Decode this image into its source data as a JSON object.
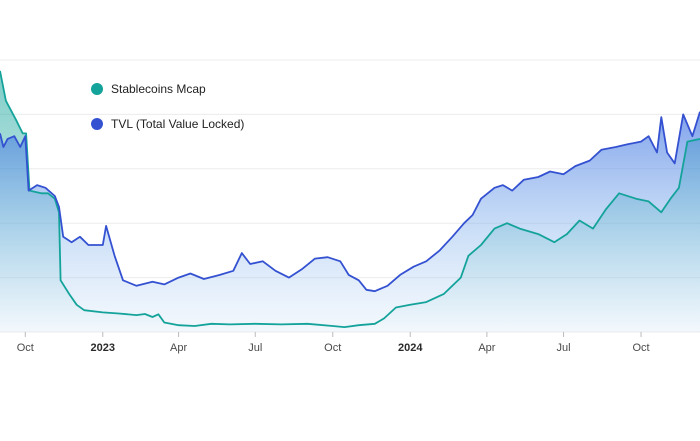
{
  "chart_data": {
    "type": "area",
    "x_ticks": [
      {
        "label": "Oct",
        "date": "2022-10-01",
        "bold": false
      },
      {
        "label": "2023",
        "date": "2023-01-01",
        "bold": true
      },
      {
        "label": "Apr",
        "date": "2023-04-01",
        "bold": false
      },
      {
        "label": "Jul",
        "date": "2023-07-01",
        "bold": false
      },
      {
        "label": "Oct",
        "date": "2023-10-01",
        "bold": false
      },
      {
        "label": "2024",
        "date": "2024-01-01",
        "bold": true
      },
      {
        "label": "Apr",
        "date": "2024-04-01",
        "bold": false
      },
      {
        "label": "Jul",
        "date": "2024-07-01",
        "bold": false
      },
      {
        "label": "Oct",
        "date": "2024-10-01",
        "bold": false
      }
    ],
    "y_axis": {
      "min": 0,
      "max": 10,
      "grid": true
    },
    "legend": {
      "placement": "top-left"
    },
    "series": [
      {
        "name": "Stablecoins Mcap",
        "color": "#14a39a",
        "points": [
          [
            "2022-09-01",
            9.6
          ],
          [
            "2022-09-08",
            8.5
          ],
          [
            "2022-09-20",
            7.8
          ],
          [
            "2022-09-28",
            7.3
          ],
          [
            "2022-10-02",
            7.3
          ],
          [
            "2022-10-06",
            5.2
          ],
          [
            "2022-10-20",
            5.1
          ],
          [
            "2022-10-28",
            5.1
          ],
          [
            "2022-11-05",
            4.9
          ],
          [
            "2022-11-10",
            4.4
          ],
          [
            "2022-11-12",
            1.9
          ],
          [
            "2022-11-22",
            1.4
          ],
          [
            "2022-12-01",
            1.0
          ],
          [
            "2022-12-10",
            0.8
          ],
          [
            "2023-01-01",
            0.72
          ],
          [
            "2023-01-20",
            0.68
          ],
          [
            "2023-02-10",
            0.62
          ],
          [
            "2023-02-20",
            0.66
          ],
          [
            "2023-03-01",
            0.55
          ],
          [
            "2023-03-08",
            0.65
          ],
          [
            "2023-03-15",
            0.35
          ],
          [
            "2023-04-01",
            0.25
          ],
          [
            "2023-04-20",
            0.22
          ],
          [
            "2023-05-10",
            0.3
          ],
          [
            "2023-06-01",
            0.28
          ],
          [
            "2023-07-01",
            0.3
          ],
          [
            "2023-08-01",
            0.28
          ],
          [
            "2023-09-01",
            0.3
          ],
          [
            "2023-10-01",
            0.22
          ],
          [
            "2023-10-15",
            0.18
          ],
          [
            "2023-11-01",
            0.25
          ],
          [
            "2023-11-20",
            0.3
          ],
          [
            "2023-12-01",
            0.5
          ],
          [
            "2023-12-15",
            0.9
          ],
          [
            "2024-01-01",
            1.0
          ],
          [
            "2024-01-20",
            1.1
          ],
          [
            "2024-02-10",
            1.4
          ],
          [
            "2024-03-01",
            2.0
          ],
          [
            "2024-03-10",
            2.8
          ],
          [
            "2024-03-25",
            3.2
          ],
          [
            "2024-04-10",
            3.8
          ],
          [
            "2024-04-25",
            4.0
          ],
          [
            "2024-05-10",
            3.8
          ],
          [
            "2024-06-01",
            3.6
          ],
          [
            "2024-06-20",
            3.3
          ],
          [
            "2024-07-05",
            3.6
          ],
          [
            "2024-07-20",
            4.1
          ],
          [
            "2024-08-05",
            3.8
          ],
          [
            "2024-08-20",
            4.5
          ],
          [
            "2024-09-05",
            5.1
          ],
          [
            "2024-09-25",
            4.9
          ],
          [
            "2024-10-10",
            4.8
          ],
          [
            "2024-10-25",
            4.4
          ],
          [
            "2024-11-05",
            4.9
          ],
          [
            "2024-11-15",
            5.3
          ],
          [
            "2024-11-25",
            7.0
          ],
          [
            "2024-12-10",
            7.1
          ]
        ]
      },
      {
        "name": "TVL (Total Value Locked)",
        "color": "#3451d1",
        "points": [
          [
            "2022-09-01",
            7.3
          ],
          [
            "2022-09-05",
            6.8
          ],
          [
            "2022-09-10",
            7.1
          ],
          [
            "2022-09-18",
            7.2
          ],
          [
            "2022-09-25",
            6.8
          ],
          [
            "2022-10-01",
            7.2
          ],
          [
            "2022-10-05",
            5.2
          ],
          [
            "2022-10-15",
            5.4
          ],
          [
            "2022-10-25",
            5.3
          ],
          [
            "2022-11-05",
            5.0
          ],
          [
            "2022-11-10",
            4.6
          ],
          [
            "2022-11-15",
            3.5
          ],
          [
            "2022-11-25",
            3.3
          ],
          [
            "2022-12-05",
            3.5
          ],
          [
            "2022-12-15",
            3.2
          ],
          [
            "2023-01-01",
            3.2
          ],
          [
            "2023-01-05",
            3.9
          ],
          [
            "2023-01-15",
            2.8
          ],
          [
            "2023-01-25",
            1.9
          ],
          [
            "2023-02-10",
            1.7
          ],
          [
            "2023-03-01",
            1.85
          ],
          [
            "2023-03-15",
            1.75
          ],
          [
            "2023-04-01",
            2.0
          ],
          [
            "2023-04-15",
            2.15
          ],
          [
            "2023-05-01",
            1.95
          ],
          [
            "2023-05-20",
            2.1
          ],
          [
            "2023-06-05",
            2.25
          ],
          [
            "2023-06-15",
            2.9
          ],
          [
            "2023-06-25",
            2.5
          ],
          [
            "2023-07-10",
            2.6
          ],
          [
            "2023-07-25",
            2.25
          ],
          [
            "2023-08-10",
            2.0
          ],
          [
            "2023-08-25",
            2.3
          ],
          [
            "2023-09-10",
            2.7
          ],
          [
            "2023-09-25",
            2.75
          ],
          [
            "2023-10-10",
            2.6
          ],
          [
            "2023-10-20",
            2.1
          ],
          [
            "2023-11-01",
            1.9
          ],
          [
            "2023-11-10",
            1.55
          ],
          [
            "2023-11-20",
            1.5
          ],
          [
            "2023-12-05",
            1.7
          ],
          [
            "2023-12-20",
            2.1
          ],
          [
            "2024-01-05",
            2.4
          ],
          [
            "2024-01-20",
            2.6
          ],
          [
            "2024-02-05",
            3.0
          ],
          [
            "2024-02-20",
            3.5
          ],
          [
            "2024-03-05",
            4.0
          ],
          [
            "2024-03-15",
            4.3
          ],
          [
            "2024-03-25",
            4.9
          ],
          [
            "2024-04-10",
            5.3
          ],
          [
            "2024-04-20",
            5.4
          ],
          [
            "2024-05-01",
            5.2
          ],
          [
            "2024-05-15",
            5.6
          ],
          [
            "2024-06-01",
            5.7
          ],
          [
            "2024-06-15",
            5.9
          ],
          [
            "2024-07-01",
            5.8
          ],
          [
            "2024-07-15",
            6.1
          ],
          [
            "2024-08-01",
            6.3
          ],
          [
            "2024-08-15",
            6.7
          ],
          [
            "2024-09-01",
            6.8
          ],
          [
            "2024-09-15",
            6.9
          ],
          [
            "2024-10-01",
            7.0
          ],
          [
            "2024-10-10",
            7.2
          ],
          [
            "2024-10-20",
            6.6
          ],
          [
            "2024-10-25",
            7.9
          ],
          [
            "2024-11-01",
            6.6
          ],
          [
            "2024-11-10",
            6.2
          ],
          [
            "2024-11-20",
            8.0
          ],
          [
            "2024-12-01",
            7.2
          ],
          [
            "2024-12-10",
            8.1
          ]
        ]
      }
    ]
  }
}
